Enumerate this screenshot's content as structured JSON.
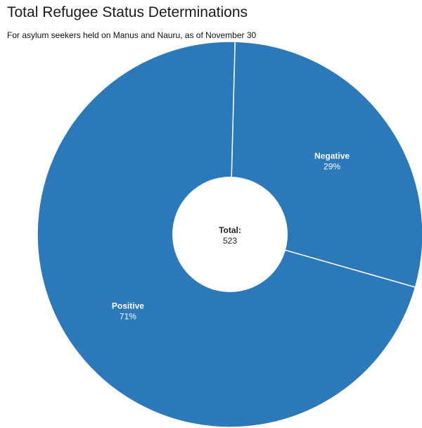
{
  "chart_data": {
    "type": "pie",
    "title": "Total Refugee Status Determinations",
    "subtitle": "For asylum seekers held on Manus and Nauru, as of November 30",
    "slices": [
      {
        "label": "Negative",
        "value": 29,
        "display": "29%"
      },
      {
        "label": "Positive",
        "value": 71,
        "display": "71%"
      }
    ],
    "center": {
      "label": "Total:",
      "value": "523"
    },
    "colors": {
      "slice": "#2b78bb",
      "separator": "#ffffff",
      "hole": "#ffffff"
    },
    "donut": true
  }
}
